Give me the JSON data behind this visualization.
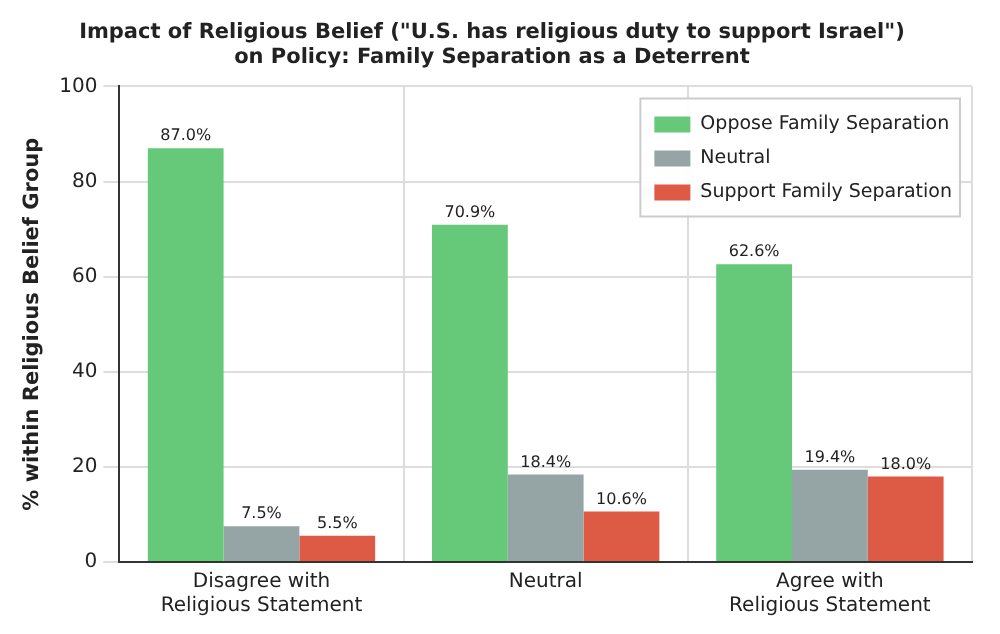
{
  "chart_data": {
    "type": "bar",
    "title": "Impact of Religious Belief (\"U.S. has religious duty to support Israel\")\non Policy: Family Separation as a Deterrent",
    "ylabel": "% within Religious Belief Group",
    "categories": [
      "Disagree with\nReligious Statement",
      "Neutral",
      "Agree with\nReligious Statement"
    ],
    "series": [
      {
        "name": "Oppose Family Separation",
        "color": "#66c97a",
        "values": [
          87.0,
          70.9,
          62.6
        ],
        "value_labels": [
          "87.0%",
          "70.9%",
          "62.6%"
        ]
      },
      {
        "name": "Neutral",
        "color": "#95a5a6",
        "values": [
          7.5,
          18.4,
          19.4
        ],
        "value_labels": [
          "7.5%",
          "18.4%",
          "19.4%"
        ]
      },
      {
        "name": "Support Family Separation",
        "color": "#dd5a45",
        "values": [
          5.5,
          10.6,
          18.0
        ],
        "value_labels": [
          "5.5%",
          "10.6%",
          "18.0%"
        ]
      }
    ],
    "ylim": [
      0,
      100
    ],
    "yticks": [
      0,
      20,
      40,
      60,
      80,
      100
    ],
    "grid": true,
    "legend": "top right"
  }
}
